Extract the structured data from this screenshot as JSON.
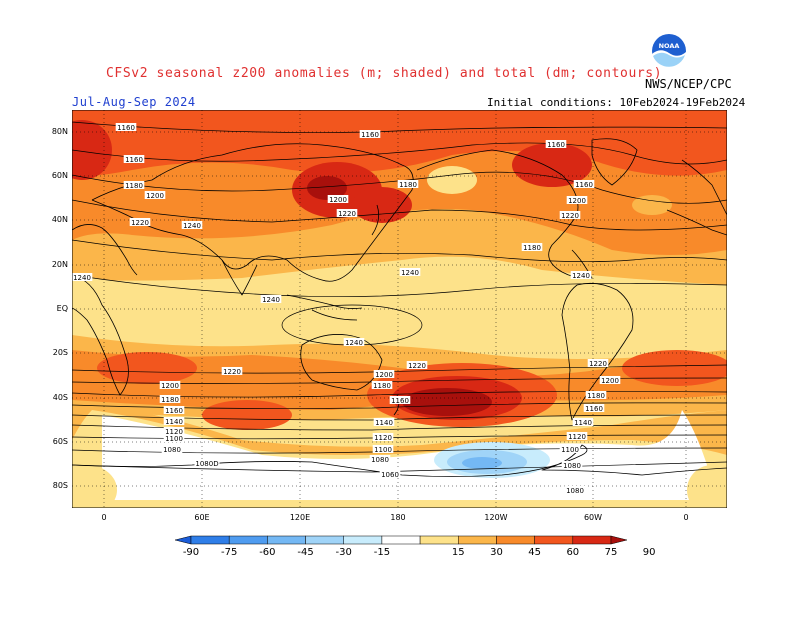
{
  "header": {
    "title": "CFSv2 seasonal z200 anomalies (m; shaded) and total (dm; contours)",
    "period": "Jul-Aug-Sep 2024",
    "initial_conditions": "Initial conditions: 10Feb2024-19Feb2024",
    "agency": "NWS/NCEP/CPC",
    "logo_text": "NOAA"
  },
  "axes": {
    "lat_labels": [
      "80N",
      "60N",
      "40N",
      "20N",
      "EQ",
      "20S",
      "40S",
      "60S",
      "80S"
    ],
    "lon_labels": [
      "0",
      "60E",
      "120E",
      "180",
      "120W",
      "60W",
      "0"
    ]
  },
  "colorbar": {
    "labels": [
      "-90",
      "-75",
      "-60",
      "-45",
      "-30",
      "-15",
      "15",
      "30",
      "45",
      "60",
      "75",
      "90"
    ],
    "colors": [
      "#1a5cd8",
      "#2f7ee8",
      "#4f9cf0",
      "#74b8f4",
      "#a0d4f8",
      "#c8ecfc",
      "#ffffff",
      "#fde28a",
      "#fbb64a",
      "#f88a2a",
      "#f2561e",
      "#d82814",
      "#a8100c"
    ]
  },
  "contour_labels": [
    "1160",
    "1160",
    "1160",
    "1180",
    "1200",
    "1220",
    "1240",
    "1240",
    "1240",
    "1240",
    "1240",
    "1220",
    "1200",
    "1180",
    "1160",
    "1140",
    "1120",
    "1100",
    "1080",
    "1080D",
    "1200",
    "1180",
    "1160",
    "1140",
    "1120",
    "1100",
    "1080",
    "1060",
    "1220",
    "1160",
    "1180",
    "1200",
    "1220",
    "1240",
    "1220",
    "1200",
    "1180",
    "1160",
    "1140",
    "1120",
    "1100",
    "1080",
    "1080",
    "1160",
    "1200",
    "1220",
    "1180"
  ]
}
